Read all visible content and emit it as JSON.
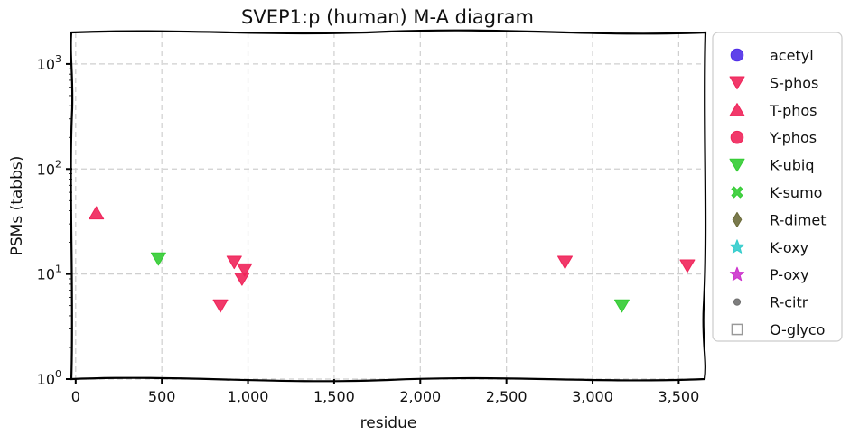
{
  "chart_data": {
    "type": "scatter",
    "title": "SVEP1:p (human) M-A diagram",
    "xlabel": "residue",
    "ylabel": "PSMs (tabbs)",
    "xlim": [
      -20,
      3650
    ],
    "ylim_log10": [
      0,
      3.3
    ],
    "y_scale": "log",
    "x_ticks": [
      {
        "value": 0,
        "label": "0"
      },
      {
        "value": 500,
        "label": "500"
      },
      {
        "value": 1000,
        "label": "1,000"
      },
      {
        "value": 1500,
        "label": "1,500"
      },
      {
        "value": 2000,
        "label": "2,000"
      },
      {
        "value": 2500,
        "label": "2,500"
      },
      {
        "value": 3000,
        "label": "3,000"
      },
      {
        "value": 3500,
        "label": "3,500"
      }
    ],
    "y_ticks": [
      {
        "value": 1,
        "base": "10",
        "exp": "0"
      },
      {
        "value": 10,
        "base": "10",
        "exp": "1"
      },
      {
        "value": 100,
        "base": "10",
        "exp": "2"
      },
      {
        "value": 1000,
        "base": "10",
        "exp": "3"
      }
    ],
    "grid": true,
    "legend_position": "outside-right",
    "legend": [
      {
        "label": "acetyl",
        "marker": "circle",
        "color": "#4f2de8"
      },
      {
        "label": "S-phos",
        "marker": "triangle-down",
        "color": "#f0245a"
      },
      {
        "label": "T-phos",
        "marker": "triangle-up",
        "color": "#f0245a"
      },
      {
        "label": "Y-phos",
        "marker": "circle",
        "color": "#f0245a"
      },
      {
        "label": "K-ubiq",
        "marker": "triangle-down",
        "color": "#33cc33"
      },
      {
        "label": "K-sumo",
        "marker": "x",
        "color": "#33cc33"
      },
      {
        "label": "R-dimet",
        "marker": "diamond",
        "color": "#6b6b3a"
      },
      {
        "label": "K-oxy",
        "marker": "star",
        "color": "#33cccc"
      },
      {
        "label": "P-oxy",
        "marker": "star",
        "color": "#cc33cc"
      },
      {
        "label": "R-citr",
        "marker": "small-circle",
        "color": "#707070"
      },
      {
        "label": "O-glyco",
        "marker": "square-open",
        "color": "#999999"
      }
    ],
    "series": [
      {
        "name": "S-phos",
        "marker": "triangle-down",
        "color": "#f0245a",
        "points": [
          {
            "x": 840,
            "y": 5
          },
          {
            "x": 920,
            "y": 13
          },
          {
            "x": 965,
            "y": 9
          },
          {
            "x": 980,
            "y": 11
          },
          {
            "x": 2840,
            "y": 13
          },
          {
            "x": 3550,
            "y": 12
          }
        ]
      },
      {
        "name": "T-phos",
        "marker": "triangle-up",
        "color": "#f0245a",
        "points": [
          {
            "x": 120,
            "y": 38
          }
        ]
      },
      {
        "name": "K-ubiq",
        "marker": "triangle-down",
        "color": "#33cc33",
        "points": [
          {
            "x": 480,
            "y": 14
          },
          {
            "x": 3170,
            "y": 5
          }
        ]
      }
    ]
  }
}
